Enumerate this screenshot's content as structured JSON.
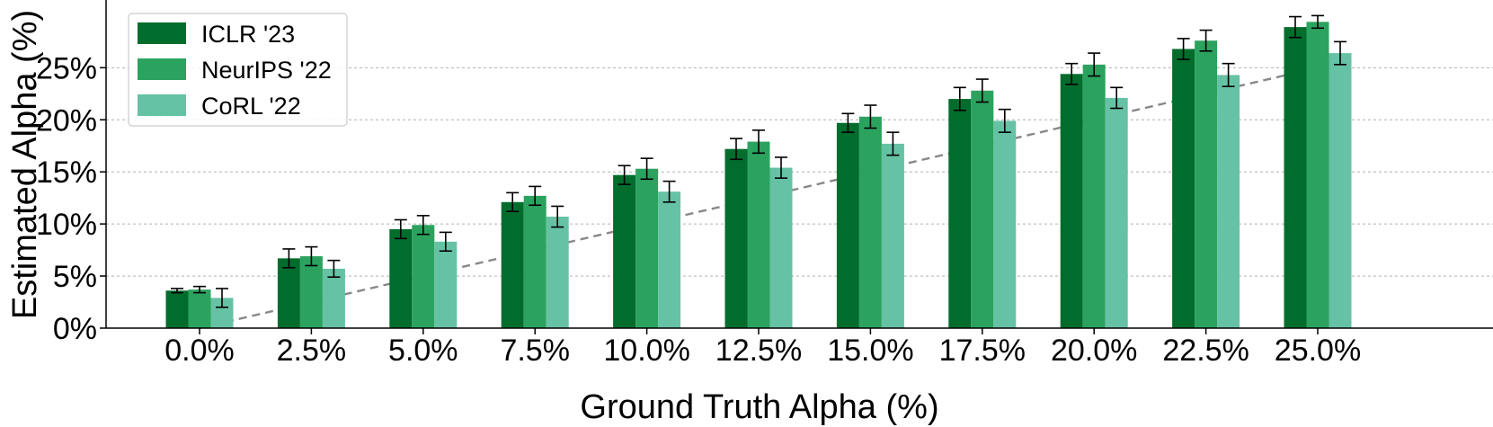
{
  "chart_data": {
    "type": "bar",
    "xlabel": "Ground Truth Alpha (%)",
    "ylabel": "Estimated Alpha (%)",
    "categories": [
      "0.0%",
      "2.5%",
      "5.0%",
      "7.5%",
      "10.0%",
      "12.5%",
      "15.0%",
      "17.5%",
      "20.0%",
      "22.5%",
      "25.0%"
    ],
    "ytick_labels": [
      "0%",
      "5%",
      "10%",
      "15%",
      "20%",
      "25%"
    ],
    "yticks": [
      0,
      5,
      10,
      15,
      20,
      25
    ],
    "ylim": [
      0,
      31.5
    ],
    "grid": "horizontal dashed",
    "legend_position": "top-left",
    "reference_line": {
      "style": "dashed",
      "color": "#888888",
      "from": [
        0,
        0
      ],
      "to": [
        25,
        25
      ]
    },
    "series": [
      {
        "name": "ICLR '23",
        "color": "#006d2c",
        "values": [
          3.6,
          6.7,
          9.5,
          12.1,
          14.7,
          17.2,
          19.7,
          22.0,
          24.4,
          26.8,
          28.9
        ],
        "errors": [
          0.2,
          0.9,
          0.9,
          0.9,
          0.9,
          1.0,
          0.9,
          1.1,
          1.0,
          1.0,
          1.0
        ]
      },
      {
        "name": "NeurIPS '22",
        "color": "#2ca25f",
        "values": [
          3.7,
          6.9,
          9.9,
          12.7,
          15.3,
          17.9,
          20.3,
          22.8,
          25.3,
          27.6,
          29.4
        ],
        "errors": [
          0.3,
          0.9,
          0.9,
          0.9,
          1.0,
          1.1,
          1.1,
          1.1,
          1.1,
          1.0,
          0.6
        ]
      },
      {
        "name": "CoRL '22",
        "color": "#66c2a4",
        "values": [
          2.9,
          5.7,
          8.3,
          10.7,
          13.1,
          15.4,
          17.7,
          19.9,
          22.1,
          24.3,
          26.4
        ],
        "errors": [
          0.9,
          0.8,
          0.9,
          1.0,
          1.0,
          1.0,
          1.1,
          1.1,
          1.0,
          1.1,
          1.1
        ]
      }
    ]
  }
}
